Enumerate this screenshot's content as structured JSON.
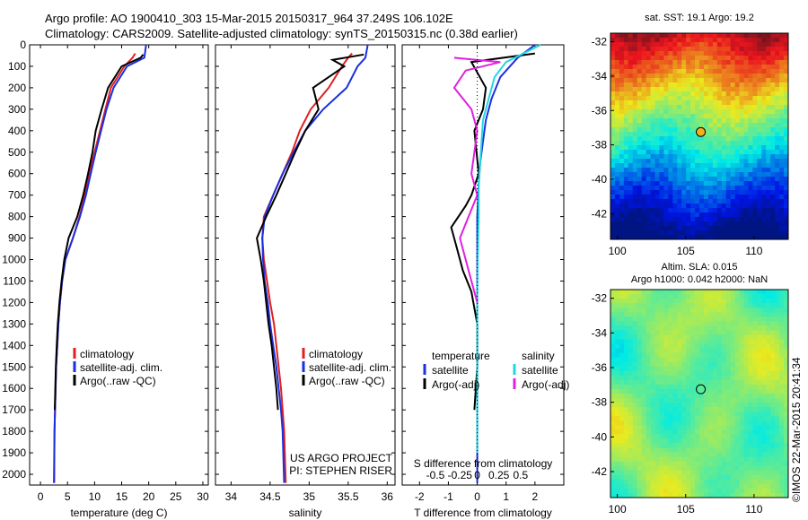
{
  "header": {
    "line1": "Argo profile: AO 1900410_303 15-Mar-2015 20150317_964 37.249S 106.102E",
    "line2": "Climatology: CARS2009. Satellite-adjusted climatology: synTS_20150315.nc (0.38d earlier)"
  },
  "side_stamp": "©IMOS 22-Mar-2015 20:41:34",
  "colors": {
    "climatology": "#e02020",
    "satellite": "#1a2fe0",
    "argo": "#000000",
    "salinity_satellite": "#22d6e0",
    "salinity_argo": "#e020e0"
  },
  "chart_data": [
    {
      "type": "line",
      "id": "temperature",
      "xlabel": "temperature (deg C)",
      "ylabel": "",
      "xlim": [
        -2,
        31
      ],
      "ylim": [
        2050,
        0
      ],
      "xticks": [
        0,
        5,
        10,
        15,
        20,
        25,
        30
      ],
      "yticks": [
        0,
        100,
        200,
        300,
        400,
        500,
        600,
        700,
        800,
        900,
        1000,
        1100,
        1200,
        1300,
        1400,
        1500,
        1600,
        1700,
        1800,
        1900,
        2000
      ],
      "legend": [
        "climatology",
        "satellite-adj. clim.",
        "Argo(..raw -QC)"
      ],
      "series": [
        {
          "name": "climatology",
          "color": "#e02020",
          "x": [
            17.5,
            17.0,
            15.5,
            13.0,
            12.0,
            11.0,
            10.0,
            9.0,
            8.2,
            7.2,
            6.0,
            4.6,
            4.0,
            3.6,
            3.3,
            3.1,
            2.9,
            2.8,
            2.7,
            2.6,
            2.55
          ],
          "y": [
            40,
            60,
            100,
            200,
            300,
            400,
            500,
            600,
            700,
            800,
            900,
            1000,
            1100,
            1200,
            1300,
            1400,
            1500,
            1600,
            1700,
            1800,
            2040
          ]
        },
        {
          "name": "satellite-adj. clim.",
          "color": "#1a2fe0",
          "x": [
            19.5,
            19.2,
            16.0,
            13.5,
            12.2,
            11.2,
            10.2,
            9.3,
            8.4,
            7.3,
            6.0,
            4.6,
            4.0,
            3.6,
            3.3,
            3.1,
            2.9,
            2.8,
            2.7,
            2.6,
            2.5
          ],
          "y": [
            0,
            60,
            100,
            200,
            300,
            400,
            500,
            600,
            700,
            800,
            900,
            1000,
            1100,
            1200,
            1300,
            1400,
            1500,
            1600,
            1700,
            1800,
            2040
          ]
        },
        {
          "name": "Argo(..raw -QC)",
          "color": "#000000",
          "x": [
            19.0,
            18.5,
            15.0,
            12.5,
            11.3,
            10.2,
            9.6,
            8.8,
            7.9,
            6.8,
            5.2,
            4.4,
            3.9,
            3.5,
            3.2,
            3.0,
            2.85,
            2.75,
            2.65
          ],
          "y": [
            45,
            60,
            100,
            200,
            300,
            400,
            500,
            600,
            700,
            800,
            900,
            1000,
            1100,
            1200,
            1300,
            1400,
            1500,
            1600,
            1700
          ]
        }
      ]
    },
    {
      "type": "line",
      "id": "salinity",
      "xlabel": "salinity",
      "ylabel": "",
      "xlim": [
        33.8,
        36.1
      ],
      "ylim": [
        2050,
        0
      ],
      "xticks": [
        34,
        34.5,
        35,
        35.5,
        36
      ],
      "legend": [
        "climatology",
        "satellite-adj. clim.",
        "Argo(..raw -QC)"
      ],
      "annotations": [
        "US ARGO PROJECT",
        "PI: STEPHEN RISER"
      ],
      "series": [
        {
          "name": "climatology",
          "color": "#e02020",
          "x": [
            35.55,
            35.5,
            35.42,
            35.25,
            35.02,
            34.88,
            34.78,
            34.66,
            34.54,
            34.42,
            34.4,
            34.42,
            34.46,
            34.5,
            34.55,
            34.58,
            34.61,
            34.64,
            34.66,
            34.68,
            34.7
          ],
          "y": [
            40,
            60,
            100,
            200,
            300,
            400,
            500,
            600,
            700,
            800,
            900,
            1000,
            1100,
            1200,
            1300,
            1400,
            1500,
            1600,
            1700,
            1800,
            2040
          ]
        },
        {
          "name": "satellite-adj. clim.",
          "color": "#1a2fe0",
          "x": [
            35.75,
            35.72,
            35.62,
            35.48,
            35.18,
            34.95,
            34.8,
            34.66,
            34.54,
            34.43,
            34.4,
            34.41,
            34.43,
            34.47,
            34.5,
            34.54,
            34.58,
            34.61,
            34.64,
            34.66,
            34.68
          ],
          "y": [
            0,
            60,
            100,
            200,
            300,
            400,
            500,
            600,
            700,
            800,
            900,
            1000,
            1100,
            1200,
            1300,
            1400,
            1500,
            1600,
            1700,
            1800,
            2040
          ]
        },
        {
          "name": "Argo(..raw -QC)",
          "color": "#000000",
          "x": [
            35.7,
            35.3,
            35.45,
            35.05,
            35.12,
            34.95,
            34.82,
            34.7,
            34.58,
            34.45,
            34.33,
            34.38,
            34.42,
            34.45,
            34.48,
            34.52,
            34.55,
            34.58,
            34.6
          ],
          "y": [
            45,
            70,
            100,
            200,
            300,
            400,
            500,
            600,
            700,
            800,
            900,
            1000,
            1100,
            1200,
            1300,
            1400,
            1500,
            1600,
            1700
          ]
        }
      ]
    },
    {
      "type": "line",
      "id": "differences",
      "xlabel": "T difference from climatology",
      "top_label": "S difference from climatology",
      "xlim": [
        -2.6,
        3.0
      ],
      "ylim": [
        2050,
        0
      ],
      "xticks": [
        -2,
        -1,
        0,
        1,
        2
      ],
      "top_ticks": [
        "-0.5",
        "-0.25",
        "0",
        "0.25",
        "0.5"
      ],
      "legend_temperature_title": "temperature",
      "legend_salinity_title": "salinity",
      "legend": [
        "satellite",
        "Argo(-adj)",
        "satellite",
        "Argo(-adj)"
      ],
      "series": [
        {
          "name": "satellite",
          "color": "#1a2fe0",
          "x": [
            2.0,
            1.4,
            0.8,
            0.5,
            0.3,
            0.2,
            0.1,
            0.05,
            0.0,
            0.0,
            0.0,
            0.0,
            0.0,
            0.0,
            0.0,
            0.0
          ],
          "y": [
            0,
            60,
            150,
            250,
            350,
            450,
            550,
            650,
            800,
            1000,
            1200,
            1400,
            1600,
            1800,
            1900,
            2040
          ]
        },
        {
          "name": "Argo(-adj)",
          "color": "#000000",
          "x": [
            2.0,
            -0.2,
            0.3,
            0.2,
            -0.1,
            0.05,
            -0.2,
            -0.4,
            -0.9,
            -0.7,
            -0.5,
            -0.2,
            0.0,
            0.0,
            -0.1
          ],
          "y": [
            40,
            80,
            200,
            300,
            400,
            600,
            700,
            750,
            850,
            950,
            1050,
            1150,
            1300,
            1500,
            1700
          ]
        },
        {
          "name": "satellite",
          "color": "#22d6e0",
          "x": [
            2.2,
            1.0,
            0.6,
            0.4,
            0.2,
            0.15,
            0.1,
            0.05,
            0.05,
            0.02,
            0.0,
            0.0,
            0.0
          ],
          "y": [
            0,
            80,
            150,
            250,
            350,
            450,
            550,
            650,
            800,
            1000,
            1200,
            1600,
            1900
          ]
        },
        {
          "name": "Argo(-adj)",
          "color": "#e020e0",
          "x": [
            -0.8,
            0.8,
            -0.4,
            -0.8,
            -0.2,
            0.0,
            -0.1,
            -0.2,
            0.0,
            -0.3,
            -0.6,
            -0.4,
            -0.2,
            0.0
          ],
          "y": [
            60,
            80,
            120,
            200,
            300,
            400,
            500,
            600,
            700,
            800,
            900,
            1000,
            1100,
            1200
          ]
        }
      ]
    },
    {
      "type": "heatmap",
      "id": "sst_map",
      "title": "sat. SST: 19.1  Argo: 19.2",
      "xlim": [
        99.5,
        112.5
      ],
      "ylim": [
        -43.5,
        -31.5
      ],
      "xticks": [
        100,
        105,
        110
      ],
      "yticks": [
        -32,
        -34,
        -36,
        -38,
        -40,
        -42
      ],
      "marker": {
        "lon": 106.102,
        "lat": -37.249
      }
    },
    {
      "type": "heatmap",
      "id": "sla_map",
      "title_line1": "Altim. SLA: 0.015",
      "title_line2": "Argo h1000: 0.042 h2000: NaN",
      "xlim": [
        99.5,
        112.5
      ],
      "ylim": [
        -43.5,
        -31.5
      ],
      "xticks": [
        100,
        105,
        110
      ],
      "yticks": [
        -32,
        -34,
        -36,
        -38,
        -40,
        -42
      ],
      "marker": {
        "lon": 106.102,
        "lat": -37.249
      }
    }
  ]
}
